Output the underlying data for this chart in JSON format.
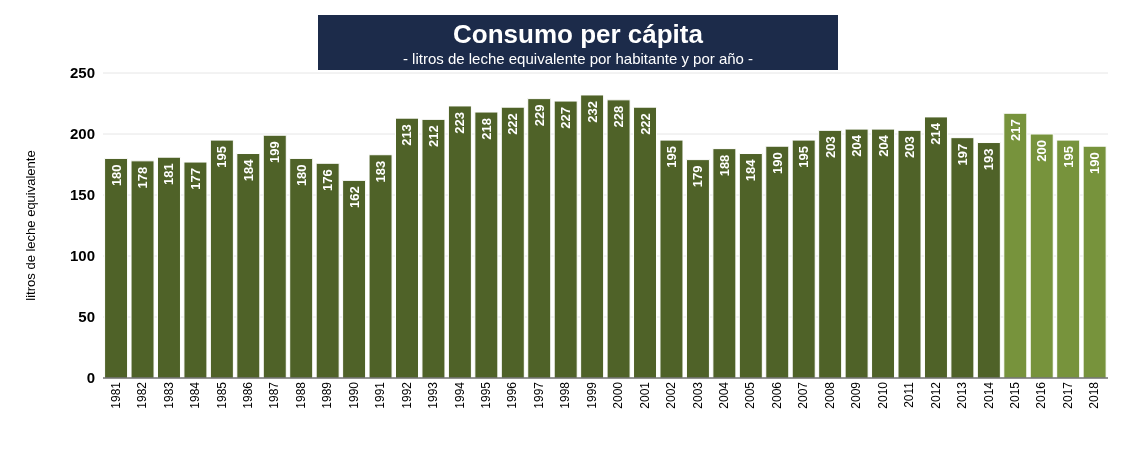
{
  "chart_data": {
    "type": "bar",
    "title": "Consumo per cápita",
    "subtitle": "- litros de leche equivalente por habitante y por año -",
    "ylabel": "litros de leche equivalente",
    "categories": [
      "1981",
      "1982",
      "1983",
      "1984",
      "1985",
      "1986",
      "1987",
      "1988",
      "1989",
      "1990",
      "1991",
      "1992",
      "1993",
      "1994",
      "1995",
      "1996",
      "1997",
      "1998",
      "1999",
      "2000",
      "2001",
      "2002",
      "2003",
      "2004",
      "2005",
      "2006",
      "2007",
      "2008",
      "2009",
      "2010",
      "2011",
      "2012",
      "2013",
      "2014",
      "2015",
      "2016",
      "2017",
      "2018"
    ],
    "values": [
      180,
      178,
      181,
      177,
      195,
      184,
      199,
      180,
      176,
      162,
      183,
      213,
      212,
      223,
      218,
      222,
      229,
      227,
      232,
      228,
      222,
      195,
      179,
      188,
      184,
      190,
      195,
      203,
      204,
      204,
      203,
      214,
      197,
      193,
      217,
      200,
      195,
      190
    ],
    "colors": [
      "#4f6228",
      "#4f6228",
      "#4f6228",
      "#4f6228",
      "#4f6228",
      "#4f6228",
      "#4f6228",
      "#4f6228",
      "#4f6228",
      "#4f6228",
      "#4f6228",
      "#4f6228",
      "#4f6228",
      "#4f6228",
      "#4f6228",
      "#4f6228",
      "#4f6228",
      "#4f6228",
      "#4f6228",
      "#4f6228",
      "#4f6228",
      "#4f6228",
      "#4f6228",
      "#4f6228",
      "#4f6228",
      "#4f6228",
      "#4f6228",
      "#4f6228",
      "#4f6228",
      "#4f6228",
      "#4f6228",
      "#4f6228",
      "#4f6228",
      "#4f6228",
      "#77933c",
      "#77933c",
      "#77933c",
      "#77933c"
    ],
    "ylim": [
      0,
      250
    ],
    "yticks": [
      0,
      50,
      100,
      150,
      200,
      250
    ],
    "grid": "y",
    "data_labels": true
  }
}
